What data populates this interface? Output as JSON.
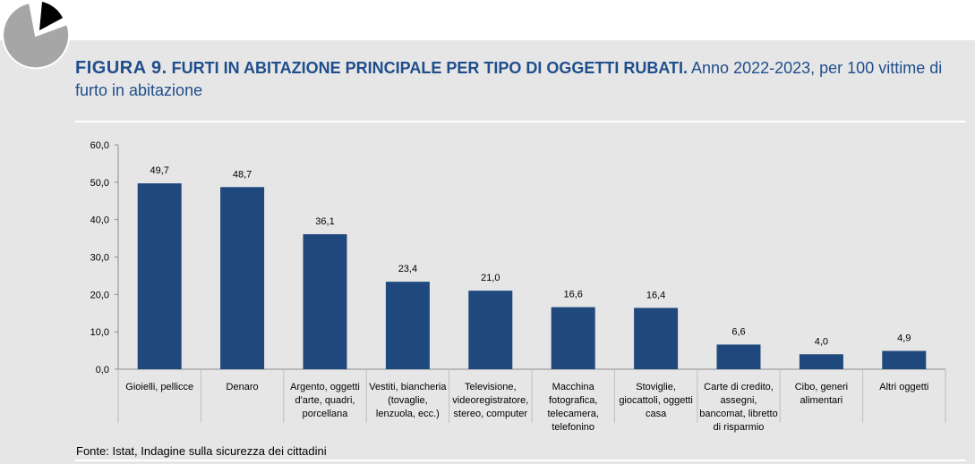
{
  "figure": {
    "label": "FIGURA 9.",
    "heading": "FURTI IN ABITAZIONE PRINCIPALE PER TIPO DI OGGETTI RUBATI.",
    "subtitle": "Anno 2022-2023, per 100 vittime di furto in abitazione",
    "source": "Fonte: Istat, Indagine sulla sicurezza dei cittadini"
  },
  "colors": {
    "bar": "#1f497d",
    "accent": "#1f4e8c",
    "panel": "#e6e6e6"
  },
  "chart_data": {
    "type": "bar",
    "categories": [
      [
        "Gioielli, pellicce"
      ],
      [
        "Denaro"
      ],
      [
        "Argento, oggetti",
        "d'arte, quadri,",
        "porcellana"
      ],
      [
        "Vestiti, biancheria",
        "(tovaglie,",
        "lenzuola, ecc.)"
      ],
      [
        "Televisione,",
        "videoregistratore,",
        "stereo, computer"
      ],
      [
        "Macchina",
        "fotografica,",
        "telecamera,",
        "telefonino"
      ],
      [
        "Stoviglie,",
        "giocattoli, oggetti",
        "casa"
      ],
      [
        "Carte di credito,",
        "assegni,",
        "bancomat, libretto",
        "di risparmio"
      ],
      [
        "Cibo, generi",
        "alimentari"
      ],
      [
        "Altri oggetti"
      ]
    ],
    "values": [
      49.7,
      48.7,
      36.1,
      23.4,
      21.0,
      16.6,
      16.4,
      6.6,
      4.0,
      4.9
    ],
    "value_labels": [
      "49,7",
      "48,7",
      "36,1",
      "23,4",
      "21,0",
      "16,6",
      "16,4",
      "6,6",
      "4,0",
      "4,9"
    ],
    "y_ticks": [
      "0,0",
      "10,0",
      "20,0",
      "30,0",
      "40,0",
      "50,0",
      "60,0"
    ],
    "ylim": [
      0,
      60
    ],
    "grid": false,
    "legend": "none"
  }
}
